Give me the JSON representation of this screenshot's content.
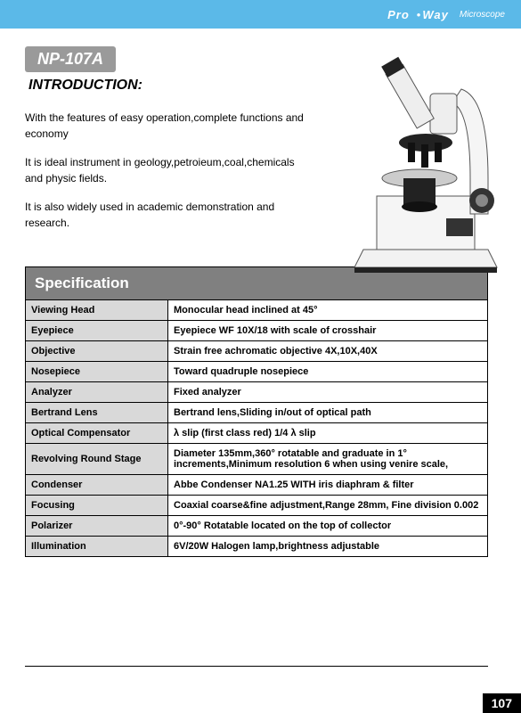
{
  "header": {
    "brand_left": "Pro",
    "dot": "•",
    "brand_right": "Way",
    "sub": "Microscope"
  },
  "model": "NP-107A",
  "intro_label": "INTRODUCTION:",
  "intro_paragraphs": [
    "With the features of easy operation,complete functions and economy",
    "It is ideal instrument in geology,petroieum,coal,chemicals and physic fields.",
    "It is also widely used in academic demonstration and research."
  ],
  "spec_title": "Specification",
  "spec_rows": [
    {
      "label": "Viewing Head",
      "value": "Monocular head inclined at 45°"
    },
    {
      "label": "Eyepiece",
      "value": "Eyepiece WF 10X/18 with scale of crosshair"
    },
    {
      "label": "Objective",
      "value": "Strain free achromatic objective 4X,10X,40X"
    },
    {
      "label": "Nosepiece",
      "value": "Toward quadruple nosepiece"
    },
    {
      "label": "Analyzer",
      "value": "Fixed analyzer"
    },
    {
      "label": "Bertrand Lens",
      "value": "Bertrand lens,Sliding in/out of optical path"
    },
    {
      "label": "Optical Compensator",
      "value": "λ slip (first class red)  1/4 λ slip"
    },
    {
      "label": "Revolving Round Stage",
      "value": "Diameter 135mm,360° rotatable and graduate in 1° increments,Minimum resolution 6 when using venire scale,"
    },
    {
      "label": "Condenser",
      "value": "Abbe Condenser NA1.25 WITH iris diaphram & filter"
    },
    {
      "label": "Focusing",
      "value": "Coaxial coarse&fine adjustment,Range 28mm, Fine division 0.002"
    },
    {
      "label": "Polarizer",
      "value": "0°-90° Rotatable located on the top of collector"
    },
    {
      "label": "Illumination",
      "value": "6V/20W Halogen lamp,brightness adjustable"
    }
  ],
  "page_number": "107",
  "colors": {
    "header_bg": "#5bb9e8",
    "badge_bg": "#9a9a9a",
    "spec_header_bg": "#808080",
    "row_label_bg": "#d9d9d9",
    "border": "#000000",
    "page_bg": "#ffffff"
  }
}
